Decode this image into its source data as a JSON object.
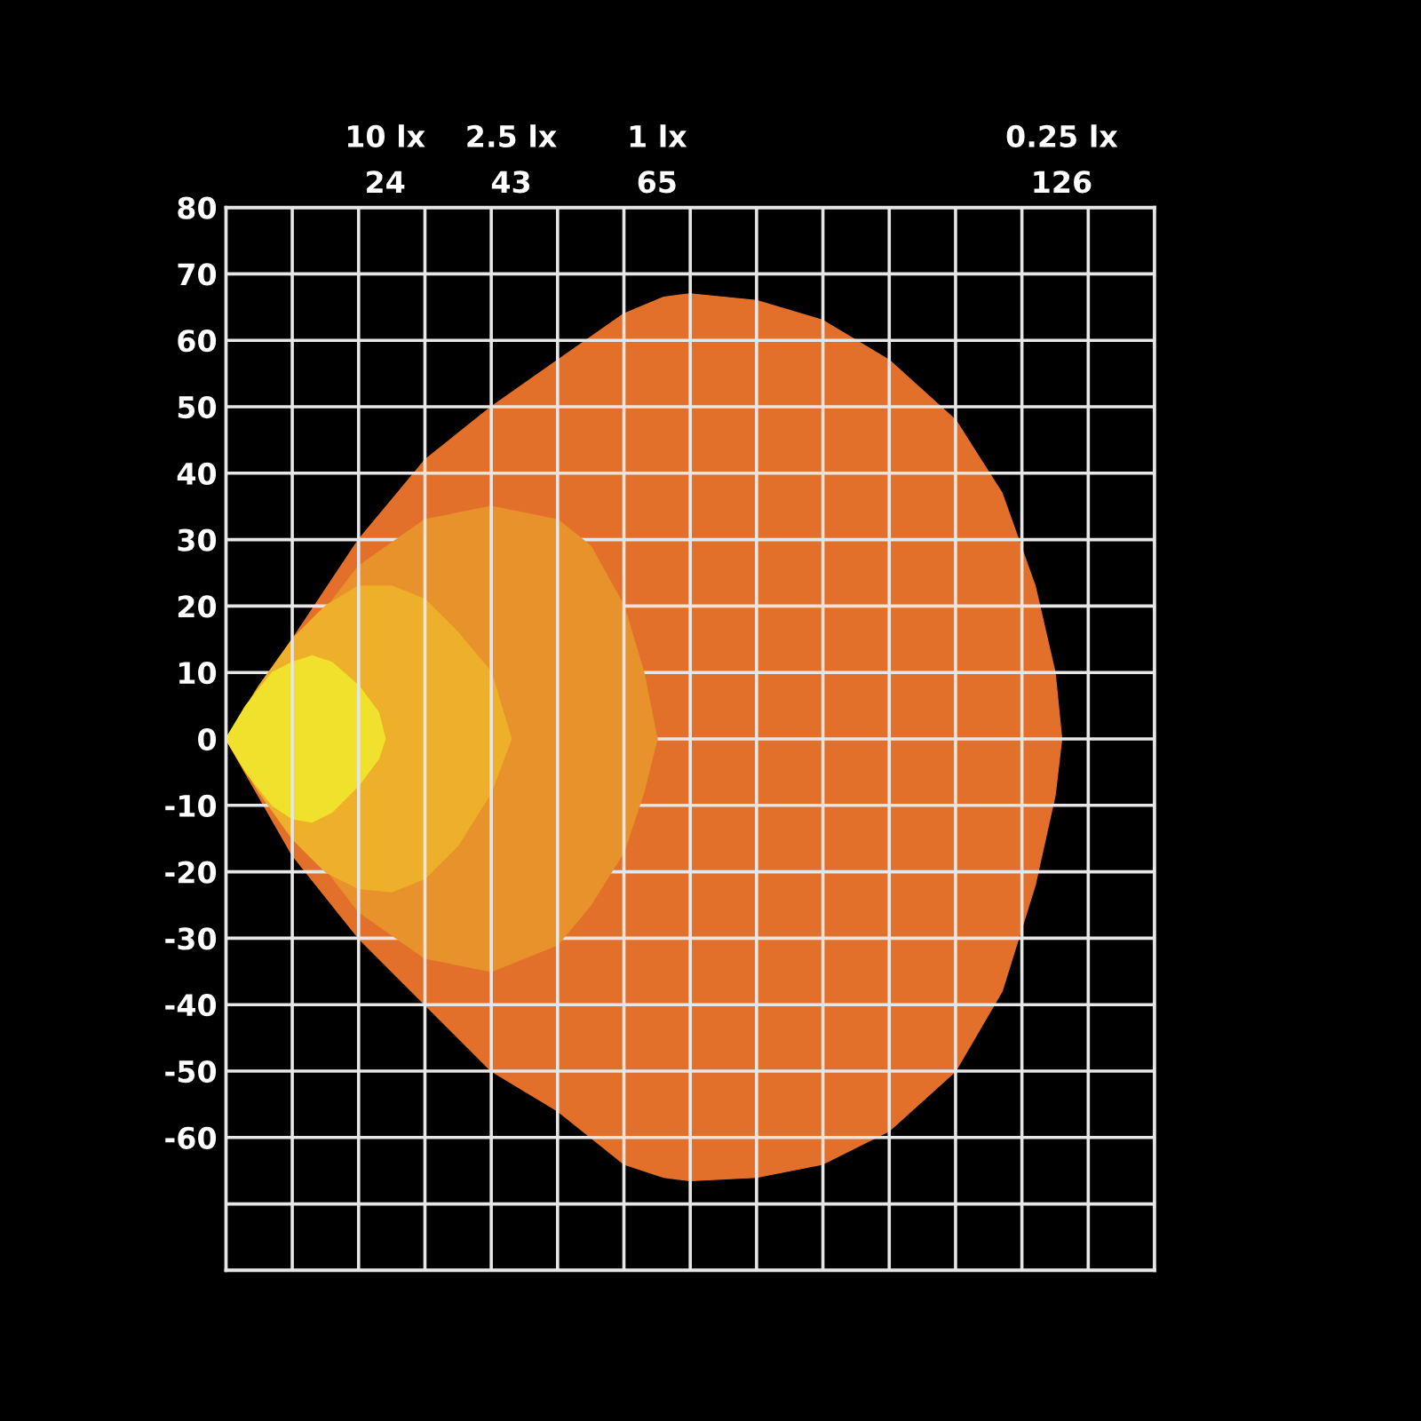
{
  "chart_data": {
    "type": "area",
    "series": [
      {
        "color": "#e3702a",
        "x": [
          0,
          10,
          20,
          30,
          40,
          50,
          60,
          66,
          70,
          80,
          90,
          100,
          110,
          117,
          122,
          125,
          126
        ],
        "values": [
          0,
          15,
          30,
          42,
          50,
          57,
          64,
          66.5,
          67,
          66,
          63,
          57,
          48,
          37,
          23,
          10,
          0
        ]
      },
      {
        "color": "#e3702a",
        "x": [
          0,
          10,
          20,
          30,
          40,
          50,
          60,
          66,
          70,
          80,
          90,
          100,
          110,
          117,
          122,
          125,
          126
        ],
        "values": [
          0,
          -17.5,
          -30,
          -40,
          -50,
          -56,
          -64,
          -66,
          -66.5,
          -66,
          -64,
          -59,
          -50,
          -38,
          -22,
          -8.5,
          0
        ]
      },
      {
        "color": "#e8922c",
        "x": [
          0,
          20,
          30,
          40,
          50,
          55,
          60,
          63,
          65
        ],
        "values": [
          0,
          26,
          33,
          35,
          33,
          29,
          20,
          10,
          0
        ]
      },
      {
        "color": "#e8922c",
        "x": [
          0,
          20,
          30,
          40,
          50,
          55,
          60,
          63,
          65
        ],
        "values": [
          0,
          -26,
          -33,
          -35,
          -31,
          -25,
          -17,
          -8,
          0
        ]
      },
      {
        "color": "#eeb02a",
        "x": [
          0,
          5,
          10,
          15,
          20,
          25,
          30,
          35,
          40,
          43
        ],
        "values": [
          0,
          8,
          15,
          20,
          23,
          23,
          21,
          16,
          10,
          0
        ]
      },
      {
        "color": "#eeb02a",
        "x": [
          0,
          5,
          10,
          15,
          20,
          25,
          30,
          35,
          40,
          43
        ],
        "values": [
          0,
          -8,
          -15,
          -20,
          -22.5,
          -23,
          -21,
          -16,
          -8,
          0
        ]
      },
      {
        "color": "#f0e22c",
        "x": [
          0,
          3,
          7,
          10,
          13,
          16,
          20,
          23,
          24
        ],
        "values": [
          0,
          5,
          10,
          11.5,
          12.5,
          11.5,
          8,
          4,
          0
        ]
      },
      {
        "color": "#f0e22c",
        "x": [
          0,
          3,
          7,
          10,
          13,
          16,
          20,
          23,
          24
        ],
        "values": [
          0,
          -5,
          -10,
          -12,
          -12.5,
          -11,
          -7,
          -3,
          0
        ]
      }
    ],
    "xlim": [
      0,
      140
    ],
    "xticks": [
      {
        "value": 0,
        "label": null
      },
      {
        "value": 10,
        "label": null
      },
      {
        "value": 20,
        "label": null
      },
      {
        "value": 30,
        "label": null
      },
      {
        "value": 40,
        "label": null
      },
      {
        "value": 50,
        "label": null
      },
      {
        "value": 60,
        "label": null
      },
      {
        "value": 70,
        "label": null
      },
      {
        "value": 80,
        "label": null
      },
      {
        "value": 90,
        "label": null
      },
      {
        "value": 100,
        "label": null
      },
      {
        "value": 110,
        "label": null
      },
      {
        "value": 120,
        "label": null
      },
      {
        "value": 130,
        "label": null
      },
      {
        "value": 140,
        "label": null
      },
      24,
      43,
      65,
      126
    ],
    "annotations": [
      "10 lx",
      "2.5 lx",
      "1 lx",
      "0.25 lx"
    ],
    "ylim": [
      -80,
      80
    ],
    "yticks": [
      80,
      70,
      60,
      50,
      40,
      30,
      20,
      10,
      0,
      -10,
      -20,
      -30,
      -40,
      -50,
      -60,
      {
        "value": -70,
        "label": null
      },
      {
        "value": -80,
        "label": null
      }
    ],
    "grid": true
  }
}
